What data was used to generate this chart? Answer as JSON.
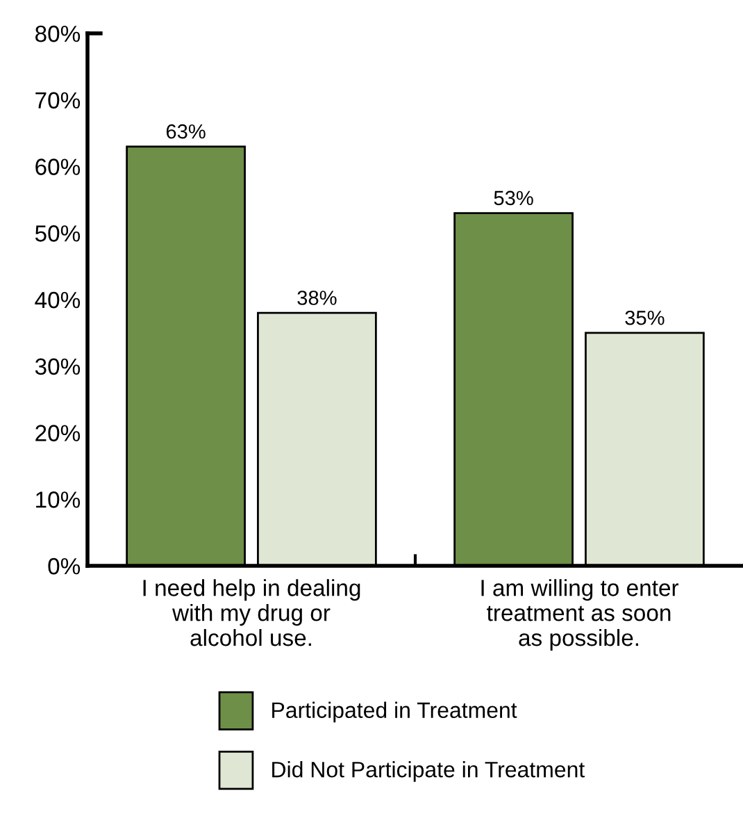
{
  "chart_data": {
    "type": "bar",
    "categories": [
      "I need help in dealing\nwith my drug or\nalcohol use.",
      "I am willing to enter\ntreatment as soon\nas possible."
    ],
    "series": [
      {
        "name": "Participated in Treatment",
        "color": "#6e8f47",
        "values": [
          63,
          53
        ]
      },
      {
        "name": "Did Not Participate in Treatment",
        "color": "#dfe6d3",
        "values": [
          38,
          35
        ]
      }
    ],
    "ylim": [
      0,
      80
    ],
    "yticks": [
      {
        "value": 0,
        "label": "0%"
      },
      {
        "value": 10,
        "label": "10%"
      },
      {
        "value": 20,
        "label": "20%"
      },
      {
        "value": 30,
        "label": "30%"
      },
      {
        "value": 40,
        "label": "40%"
      },
      {
        "value": 50,
        "label": "50%"
      },
      {
        "value": 60,
        "label": "60%"
      },
      {
        "value": 70,
        "label": "70%"
      },
      {
        "value": 80,
        "label": "80%"
      }
    ],
    "value_labels": [
      [
        "63%",
        "53%"
      ],
      [
        "38%",
        "35%"
      ]
    ],
    "legend": "bottom",
    "grid": false
  }
}
